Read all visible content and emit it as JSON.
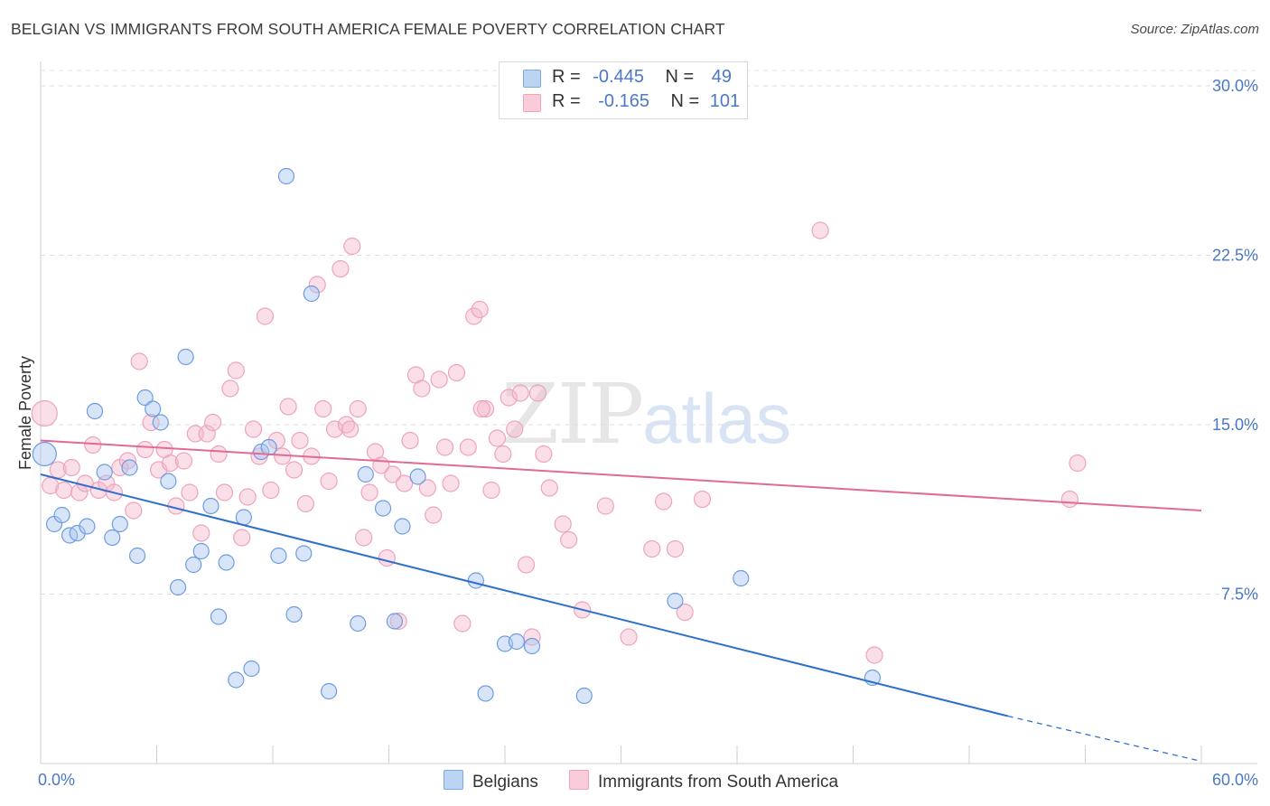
{
  "title": "BELGIAN VS IMMIGRANTS FROM SOUTH AMERICA FEMALE POVERTY CORRELATION CHART",
  "source": "Source: ZipAtlas.com",
  "watermark": {
    "zip": "ZIP",
    "atlas": "atlas"
  },
  "legend": {
    "rows": [
      {
        "r_label": "R =",
        "r_value": "-0.445",
        "n_label": "N =",
        "n_value": "49",
        "color": "#a9c6ef"
      },
      {
        "r_label": "R =",
        "r_value": "-0.165",
        "n_label": "N =",
        "n_value": "101",
        "color": "#f5b8cb"
      }
    ]
  },
  "bottom_legend": [
    {
      "label": "Belgians",
      "color": "#a9c6ef"
    },
    {
      "label": "Immigrants from South America",
      "color": "#f5b8cb"
    }
  ],
  "colors": {
    "blue": "#4a86d8",
    "blue_line": "#2e6fce",
    "pink": "#ee9ab4",
    "pink_line": "#e26a94",
    "tick_text": "#4a78c8"
  },
  "chart_data": {
    "type": "scatter",
    "title": "BELGIAN VS IMMIGRANTS FROM SOUTH AMERICA FEMALE POVERTY CORRELATION CHART",
    "xlabel": "",
    "ylabel": "Female Poverty",
    "xlim": [
      0,
      60
    ],
    "ylim": [
      0,
      31
    ],
    "x_tick_labels": [
      "0.0%",
      "60.0%"
    ],
    "y_ticks": [
      7.5,
      15.0,
      22.5,
      30.0
    ],
    "y_tick_labels": [
      "7.5%",
      "15.0%",
      "22.5%",
      "30.0%"
    ],
    "grid": true,
    "legend_position": "top-center",
    "series": [
      {
        "name": "Belgians",
        "r": -0.445,
        "n": 49,
        "trend": {
          "x0": 0.0,
          "y0": 12.8,
          "x1": 50.0,
          "y1": 2.1,
          "dashed_to_x": 60.0,
          "dashed_to_y": 0.1
        },
        "points": [
          [
            0.2,
            13.7
          ],
          [
            0.7,
            10.6
          ],
          [
            1.1,
            11.0
          ],
          [
            1.5,
            10.1
          ],
          [
            1.9,
            10.2
          ],
          [
            2.4,
            10.5
          ],
          [
            2.8,
            15.6
          ],
          [
            3.3,
            12.9
          ],
          [
            3.7,
            10.0
          ],
          [
            4.1,
            10.6
          ],
          [
            4.6,
            13.1
          ],
          [
            5.0,
            9.2
          ],
          [
            5.4,
            16.2
          ],
          [
            5.8,
            15.7
          ],
          [
            6.2,
            15.1
          ],
          [
            6.6,
            12.5
          ],
          [
            7.1,
            7.8
          ],
          [
            7.5,
            18.0
          ],
          [
            7.9,
            8.8
          ],
          [
            8.3,
            9.4
          ],
          [
            8.8,
            11.4
          ],
          [
            9.2,
            6.5
          ],
          [
            9.6,
            8.9
          ],
          [
            10.1,
            3.7
          ],
          [
            10.5,
            10.9
          ],
          [
            10.9,
            4.2
          ],
          [
            11.4,
            13.8
          ],
          [
            11.8,
            14.0
          ],
          [
            12.3,
            9.2
          ],
          [
            12.7,
            26.0
          ],
          [
            13.1,
            6.6
          ],
          [
            13.6,
            9.3
          ],
          [
            14.0,
            20.8
          ],
          [
            14.9,
            3.2
          ],
          [
            16.4,
            6.2
          ],
          [
            16.8,
            12.8
          ],
          [
            17.7,
            11.3
          ],
          [
            18.3,
            6.3
          ],
          [
            18.7,
            10.5
          ],
          [
            19.5,
            12.7
          ],
          [
            22.5,
            8.1
          ],
          [
            23.0,
            3.1
          ],
          [
            24.0,
            5.3
          ],
          [
            24.6,
            5.4
          ],
          [
            25.4,
            5.2
          ],
          [
            28.1,
            3.0
          ],
          [
            32.8,
            7.2
          ],
          [
            36.2,
            8.2
          ],
          [
            43.0,
            3.8
          ]
        ]
      },
      {
        "name": "Immigrants from South America",
        "r": -0.165,
        "n": 101,
        "trend": {
          "x0": 0.0,
          "y0": 14.3,
          "x1": 60.0,
          "y1": 11.2
        },
        "points": [
          [
            0.2,
            15.5
          ],
          [
            0.5,
            12.3
          ],
          [
            0.9,
            13.0
          ],
          [
            1.2,
            12.1
          ],
          [
            1.6,
            13.1
          ],
          [
            2.0,
            12.0
          ],
          [
            2.3,
            12.4
          ],
          [
            2.7,
            14.1
          ],
          [
            3.0,
            12.1
          ],
          [
            3.4,
            12.4
          ],
          [
            3.8,
            12.0
          ],
          [
            4.1,
            13.1
          ],
          [
            4.5,
            13.4
          ],
          [
            4.8,
            11.2
          ],
          [
            5.1,
            17.8
          ],
          [
            5.4,
            13.9
          ],
          [
            5.7,
            15.1
          ],
          [
            6.1,
            13.0
          ],
          [
            6.4,
            13.9
          ],
          [
            6.7,
            13.3
          ],
          [
            7.0,
            11.4
          ],
          [
            7.4,
            13.4
          ],
          [
            7.7,
            12.0
          ],
          [
            8.0,
            14.6
          ],
          [
            8.3,
            10.2
          ],
          [
            8.6,
            14.6
          ],
          [
            8.9,
            15.1
          ],
          [
            9.2,
            13.7
          ],
          [
            9.5,
            12.0
          ],
          [
            9.8,
            16.6
          ],
          [
            10.1,
            17.4
          ],
          [
            10.4,
            10.0
          ],
          [
            10.7,
            11.8
          ],
          [
            11.0,
            14.8
          ],
          [
            11.3,
            13.6
          ],
          [
            11.6,
            19.8
          ],
          [
            11.9,
            12.1
          ],
          [
            12.2,
            14.3
          ],
          [
            12.5,
            13.6
          ],
          [
            12.8,
            15.8
          ],
          [
            13.1,
            13.0
          ],
          [
            13.4,
            14.3
          ],
          [
            13.7,
            11.5
          ],
          [
            14.0,
            13.6
          ],
          [
            14.3,
            21.2
          ],
          [
            14.6,
            15.7
          ],
          [
            14.9,
            12.5
          ],
          [
            15.2,
            14.8
          ],
          [
            15.5,
            21.9
          ],
          [
            15.8,
            15.0
          ],
          [
            16.1,
            22.9
          ],
          [
            16.4,
            15.7
          ],
          [
            16.7,
            10.0
          ],
          [
            17.0,
            12.0
          ],
          [
            17.3,
            13.8
          ],
          [
            17.6,
            13.2
          ],
          [
            17.9,
            9.1
          ],
          [
            18.2,
            12.8
          ],
          [
            18.5,
            6.3
          ],
          [
            18.8,
            12.4
          ],
          [
            19.1,
            14.3
          ],
          [
            19.4,
            17.2
          ],
          [
            19.7,
            16.6
          ],
          [
            20.0,
            12.2
          ],
          [
            20.3,
            11.0
          ],
          [
            20.6,
            17.0
          ],
          [
            20.9,
            14.0
          ],
          [
            21.2,
            12.4
          ],
          [
            21.5,
            17.3
          ],
          [
            21.8,
            6.2
          ],
          [
            22.1,
            14.0
          ],
          [
            22.4,
            19.8
          ],
          [
            22.7,
            20.1
          ],
          [
            23.0,
            15.7
          ],
          [
            23.3,
            12.1
          ],
          [
            23.6,
            14.4
          ],
          [
            23.9,
            13.7
          ],
          [
            24.2,
            16.2
          ],
          [
            24.5,
            14.8
          ],
          [
            24.8,
            16.4
          ],
          [
            25.1,
            8.8
          ],
          [
            25.4,
            5.6
          ],
          [
            25.7,
            16.4
          ],
          [
            26.0,
            13.7
          ],
          [
            26.3,
            12.2
          ],
          [
            27.0,
            10.6
          ],
          [
            27.3,
            9.9
          ],
          [
            28.0,
            6.8
          ],
          [
            29.2,
            11.4
          ],
          [
            30.4,
            5.6
          ],
          [
            31.6,
            9.5
          ],
          [
            32.2,
            11.6
          ],
          [
            32.8,
            9.5
          ],
          [
            33.3,
            6.7
          ],
          [
            34.2,
            11.7
          ],
          [
            40.3,
            23.6
          ],
          [
            43.1,
            4.8
          ],
          [
            53.2,
            11.7
          ],
          [
            53.6,
            13.3
          ],
          [
            22.8,
            15.7
          ],
          [
            16.0,
            14.8
          ]
        ]
      }
    ]
  }
}
